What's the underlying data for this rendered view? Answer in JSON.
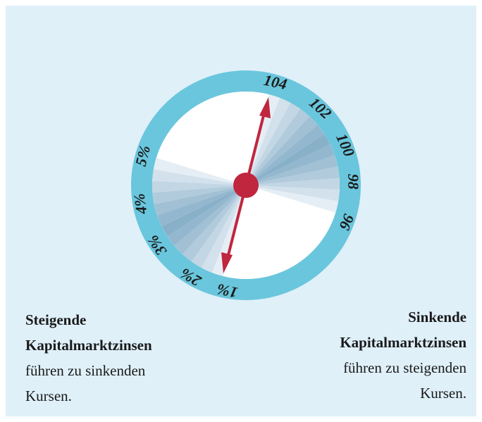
{
  "dial": {
    "bond_prices": [
      "104",
      "102",
      "100",
      "98",
      "96"
    ],
    "interest_rates": [
      "5%",
      "4%",
      "3%",
      "2%",
      "1%"
    ]
  },
  "left_caption": {
    "bold": [
      "Steigende",
      "Kapitalmarktzinsen"
    ],
    "text": [
      "führen zu sinkenden",
      "Kursen."
    ]
  },
  "right_caption": {
    "bold": [
      "Sinkende",
      "Kapitalmarktzinsen"
    ],
    "text": [
      "führen zu steigenden",
      "Kursen."
    ]
  }
}
